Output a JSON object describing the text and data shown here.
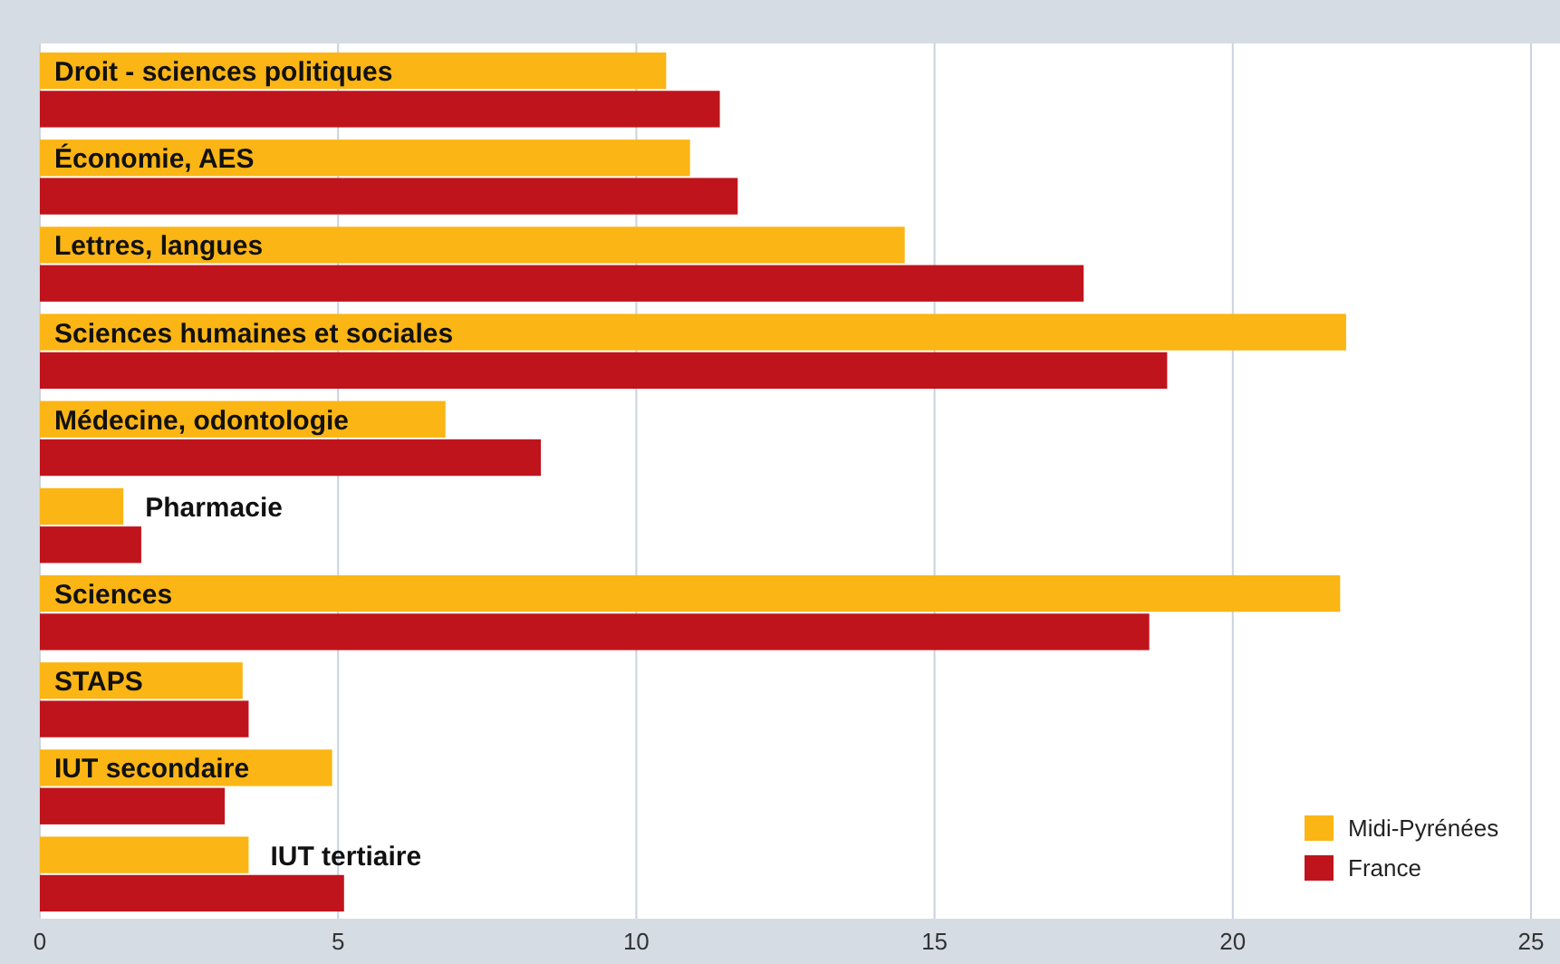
{
  "chart_data": {
    "type": "bar",
    "orientation": "horizontal",
    "categories": [
      "Droit - sciences politiques",
      "Économie,  AES",
      "Lettres, langues",
      "Sciences humaines et sociales",
      "Médecine, odontologie",
      "Pharmacie",
      "Sciences",
      "STAPS",
      "IUT secondaire",
      "IUT tertiaire"
    ],
    "series": [
      {
        "name": "Midi-Pyrénées",
        "color": "#fbb514",
        "values": [
          10.5,
          10.9,
          14.5,
          21.9,
          6.8,
          1.4,
          21.8,
          3.4,
          4.9,
          3.5
        ]
      },
      {
        "name": "France",
        "color": "#c0141c",
        "values": [
          11.4,
          11.7,
          17.5,
          18.9,
          8.4,
          1.7,
          18.6,
          3.5,
          3.1,
          5.1
        ]
      }
    ],
    "xlim": [
      0,
      25
    ],
    "xticks": [
      0,
      5,
      10,
      15,
      20,
      25
    ],
    "grid": "x",
    "legend": "bottom right"
  }
}
